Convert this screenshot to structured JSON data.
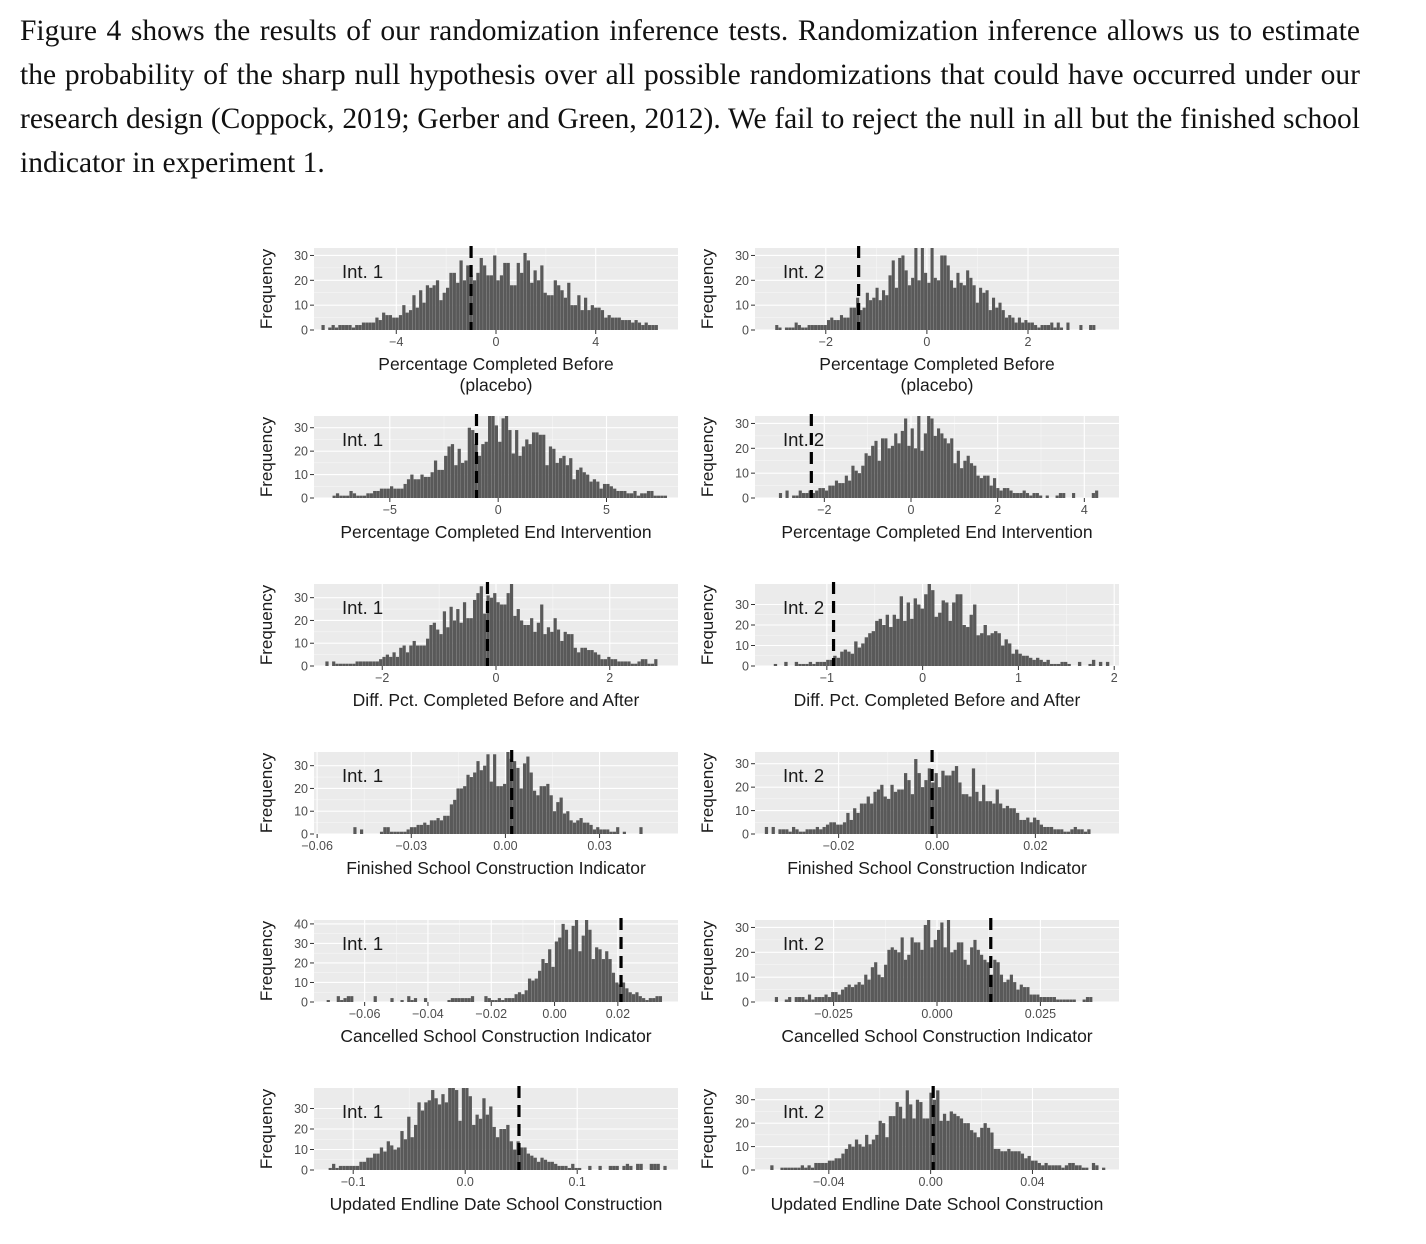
{
  "paragraph": "Figure 4 shows the results of our randomization inference tests. Randomization inference allows us to estimate the probability of the sharp null hypothesis over all possible randomizations that could have occurred under our research design (Coppock, 2019; Gerber and Green, 2012). We fail to reject the null in all but the finished school indicator in experiment 1.",
  "colors": {
    "panel": "#ebebeb",
    "bar": "#595959",
    "observed_line": "#000000"
  },
  "chart_data": [
    {
      "id": "r1c1",
      "type": "bar",
      "annotation": "Int. 1",
      "xlabel": [
        "Percentage Completed Before",
        "(placebo)"
      ],
      "ylabel": "Frequency",
      "xlim": [
        -7.3,
        7.3
      ],
      "ylim": [
        0,
        33
      ],
      "xticks": [
        -4,
        0,
        4
      ],
      "xticklabels": [
        "−4",
        "0",
        "4"
      ],
      "yticks": [
        0,
        10,
        20,
        30
      ],
      "observed": -1.0,
      "center": 0.2,
      "spread": 2.6,
      "peak": 28,
      "bins": 100,
      "range": [
        -7,
        6.5
      ]
    },
    {
      "id": "r1c2",
      "type": "bar",
      "annotation": "Int. 2",
      "xlabel": [
        "Percentage Completed Before",
        "(placebo)"
      ],
      "ylabel": "Frequency",
      "xlim": [
        -3.4,
        3.8
      ],
      "ylim": [
        0,
        33
      ],
      "xticks": [
        -2,
        0,
        2
      ],
      "xticklabels": [
        "−2",
        "0",
        "2"
      ],
      "yticks": [
        0,
        10,
        20,
        30
      ],
      "observed": -1.35,
      "center": 0.0,
      "spread": 0.95,
      "peak": 30,
      "bins": 100,
      "range": [
        -3.0,
        3.4
      ]
    },
    {
      "id": "r2c1",
      "type": "bar",
      "annotation": "Int. 1",
      "xlabel": [
        "Percentage Completed End Intervention"
      ],
      "ylabel": "Frequency",
      "xlim": [
        -8.5,
        8.3
      ],
      "ylim": [
        0,
        35
      ],
      "xticks": [
        -5,
        0,
        5
      ],
      "xticklabels": [
        "−5",
        "0",
        "5"
      ],
      "yticks": [
        0,
        10,
        20,
        30
      ],
      "observed": -1.0,
      "center": 0.2,
      "spread": 2.6,
      "peak": 30,
      "bins": 100,
      "range": [
        -7.8,
        7.8
      ]
    },
    {
      "id": "r2c2",
      "type": "bar",
      "annotation": "Int. 2",
      "xlabel": [
        "Percentage Completed End Intervention"
      ],
      "ylabel": "Frequency",
      "xlim": [
        -3.6,
        4.8
      ],
      "ylim": [
        0,
        33
      ],
      "xticks": [
        -2,
        0,
        2,
        4
      ],
      "xticklabels": [
        "−2",
        "0",
        "2",
        "4"
      ],
      "yticks": [
        0,
        10,
        20,
        30
      ],
      "observed": -2.3,
      "center": 0.1,
      "spread": 1.05,
      "peak": 29,
      "bins": 100,
      "range": [
        -3.2,
        4.4
      ]
    },
    {
      "id": "r3c1",
      "type": "bar",
      "annotation": "Int. 1",
      "xlabel": [
        "Diff. Pct. Completed Before and After"
      ],
      "ylabel": "Frequency",
      "xlim": [
        -3.2,
        3.2
      ],
      "ylim": [
        0,
        36
      ],
      "xticks": [
        -2,
        0,
        2
      ],
      "xticklabels": [
        "−2",
        "0",
        "2"
      ],
      "yticks": [
        0,
        10,
        20,
        30
      ],
      "observed": -0.15,
      "center": 0.0,
      "spread": 0.95,
      "peak": 32,
      "bins": 100,
      "range": [
        -3.0,
        2.9
      ]
    },
    {
      "id": "r3c2",
      "type": "bar",
      "annotation": "Int. 2",
      "xlabel": [
        "Diff. Pct. Completed Before and After"
      ],
      "ylabel": "Frequency",
      "xlim": [
        -1.75,
        2.05
      ],
      "ylim": [
        0,
        40
      ],
      "xticks": [
        -1,
        0,
        1,
        2
      ],
      "xticklabels": [
        "−1",
        "0",
        "1",
        "2"
      ],
      "yticks": [
        0,
        10,
        20,
        30
      ],
      "observed": -0.93,
      "center": 0.1,
      "spread": 0.5,
      "peak": 36,
      "bins": 100,
      "range": [
        -1.7,
        1.95
      ]
    },
    {
      "id": "r4c1",
      "type": "bar",
      "annotation": "Int. 1",
      "xlabel": [
        "Finished School Construction Indicator"
      ],
      "ylabel": "Frequency",
      "xlim": [
        -0.061,
        0.055
      ],
      "ylim": [
        0,
        36
      ],
      "xticks": [
        -0.06,
        -0.03,
        0.0,
        0.03
      ],
      "xticklabels": [
        "−0.06",
        "−0.03",
        "0.00",
        "0.03"
      ],
      "yticks": [
        0,
        10,
        20,
        30
      ],
      "observed": 0.002,
      "center": 0.0,
      "spread": 0.013,
      "peak": 33,
      "bins": 100,
      "range": [
        -0.058,
        0.048
      ]
    },
    {
      "id": "r4c2",
      "type": "bar",
      "annotation": "Int. 2",
      "xlabel": [
        "Finished School Construction Indicator"
      ],
      "ylabel": "Frequency",
      "xlim": [
        -0.037,
        0.037
      ],
      "ylim": [
        0,
        35
      ],
      "xticks": [
        -0.02,
        0.0,
        0.02
      ],
      "xticklabels": [
        "−0.02",
        "0.00",
        "0.02"
      ],
      "yticks": [
        0,
        10,
        20,
        30
      ],
      "observed": -0.001,
      "center": 0.0,
      "spread": 0.011,
      "peak": 30,
      "bins": 100,
      "range": [
        -0.035,
        0.034
      ]
    },
    {
      "id": "r5c1",
      "type": "bar",
      "annotation": "Int. 1",
      "xlabel": [
        "Cancelled School Construction Indicator"
      ],
      "ylabel": "Frequency",
      "xlim": [
        -0.076,
        0.039
      ],
      "ylim": [
        0,
        42
      ],
      "xticks": [
        -0.06,
        -0.04,
        -0.02,
        0.0,
        0.02
      ],
      "xticklabels": [
        "−0.06",
        "−0.04",
        "−0.02",
        "0.00",
        "0.02"
      ],
      "yticks": [
        0,
        10,
        20,
        30,
        40
      ],
      "observed": 0.021,
      "center": 0.007,
      "spread": 0.009,
      "peak": 38,
      "bins": 100,
      "range": [
        -0.072,
        0.034
      ]
    },
    {
      "id": "r5c2",
      "type": "bar",
      "annotation": "Int. 2",
      "xlabel": [
        "Cancelled School Construction Indicator"
      ],
      "ylabel": "Frequency",
      "xlim": [
        -0.044,
        0.044
      ],
      "ylim": [
        0,
        33
      ],
      "xticks": [
        -0.025,
        0.0,
        0.025
      ],
      "xticklabels": [
        "−0.025",
        "0.000",
        "0.025"
      ],
      "yticks": [
        0,
        10,
        20,
        30
      ],
      "observed": 0.013,
      "center": 0.0,
      "spread": 0.012,
      "peak": 29,
      "bins": 100,
      "range": [
        -0.04,
        0.04
      ]
    },
    {
      "id": "r6c1",
      "type": "bar",
      "annotation": "Int. 1",
      "xlabel": [
        "Updated Endline Date School Construction"
      ],
      "ylabel": "Frequency",
      "xlim": [
        -0.135,
        0.19
      ],
      "ylim": [
        0,
        40
      ],
      "xticks": [
        -0.1,
        0.0,
        0.1
      ],
      "xticklabels": [
        "−0.1",
        "0.0",
        "0.1"
      ],
      "yticks": [
        0,
        10,
        20,
        30
      ],
      "observed": 0.048,
      "center": -0.01,
      "spread": 0.04,
      "peak": 37,
      "bins": 100,
      "range": [
        -0.125,
        0.18
      ]
    },
    {
      "id": "r6c2",
      "type": "bar",
      "annotation": "Int. 2",
      "xlabel": [
        "Updated Endline Date School Construction"
      ],
      "ylabel": "Frequency",
      "xlim": [
        -0.069,
        0.074
      ],
      "ylim": [
        0,
        35
      ],
      "xticks": [
        -0.04,
        0.0,
        0.04
      ],
      "xticklabels": [
        "−0.04",
        "0.00",
        "0.04"
      ],
      "yticks": [
        0,
        10,
        20,
        30
      ],
      "observed": 0.001,
      "center": 0.0,
      "spread": 0.02,
      "peak": 32,
      "bins": 100,
      "range": [
        -0.063,
        0.07
      ]
    }
  ]
}
